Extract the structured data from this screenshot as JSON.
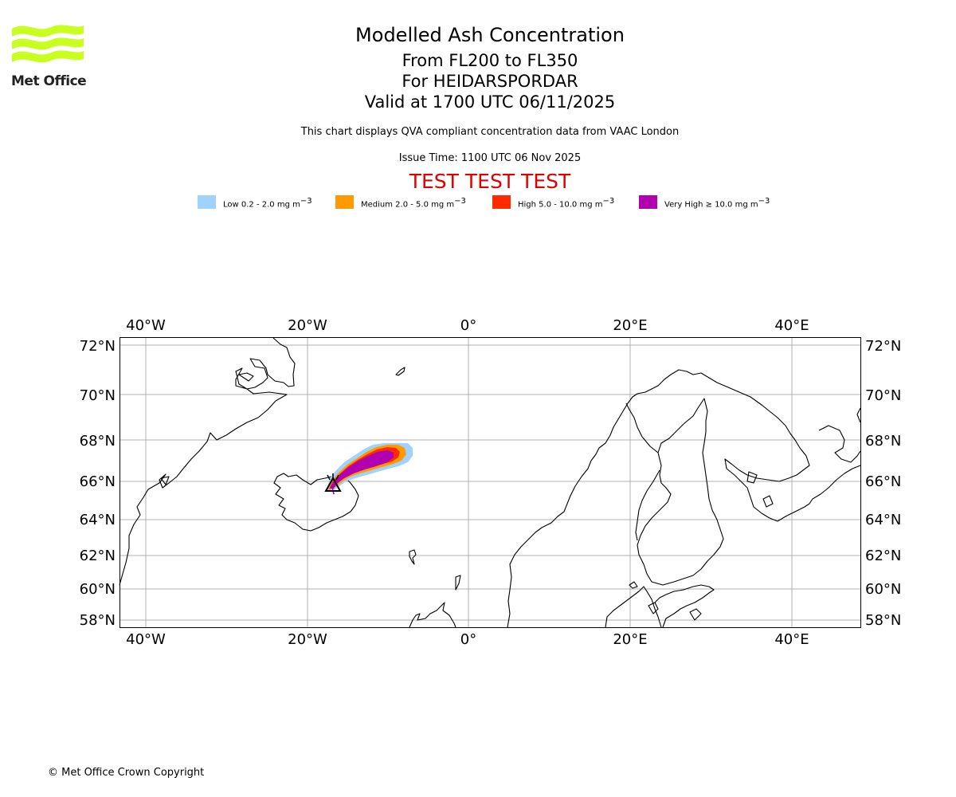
{
  "header": {
    "logo_text": "Met Office",
    "title": "Modelled Ash Concentration",
    "levels": "From FL200 to FL350",
    "volcano": "For HEIDARSPORDAR",
    "valid": "Valid at 1700 UTC 06/11/2025",
    "subtitle": "This chart displays QVA compliant concentration data from VAAC London",
    "issue_time": "Issue Time: 1100 UTC 06 Nov 2025",
    "test_banner": "TEST TEST TEST"
  },
  "legend": [
    {
      "label": "Low 0.2 - 2.0 mg m",
      "unit_exp": "−3",
      "color": "#a0d2ff"
    },
    {
      "label": "Medium 2.0 - 5.0 mg m",
      "unit_exp": "−3",
      "color": "#ff9a00"
    },
    {
      "label": "High 5.0 - 10.0 mg m",
      "unit_exp": "−3",
      "color": "#ff2a00"
    },
    {
      "label": "Very High  ≥  10.0 mg m",
      "unit_exp": "−3",
      "color": "#b000b0"
    }
  ],
  "map": {
    "lon_ticks": [
      "40°W",
      "20°W",
      "0°",
      "20°E",
      "40°E"
    ],
    "lat_ticks": [
      "72°N",
      "70°N",
      "68°N",
      "66°N",
      "64°N",
      "62°N",
      "60°N",
      "58°N"
    ],
    "lon_range": [
      -43.2,
      48.4
    ],
    "lat_range": [
      57.5,
      72.4
    ],
    "gridlines": true,
    "volcano_marker": {
      "name": "HEIDARSPORDAR",
      "lon": -16.6,
      "lat": 65.8,
      "symbol": "triangle"
    }
  },
  "footer": "© Met Office Crown Copyright"
}
